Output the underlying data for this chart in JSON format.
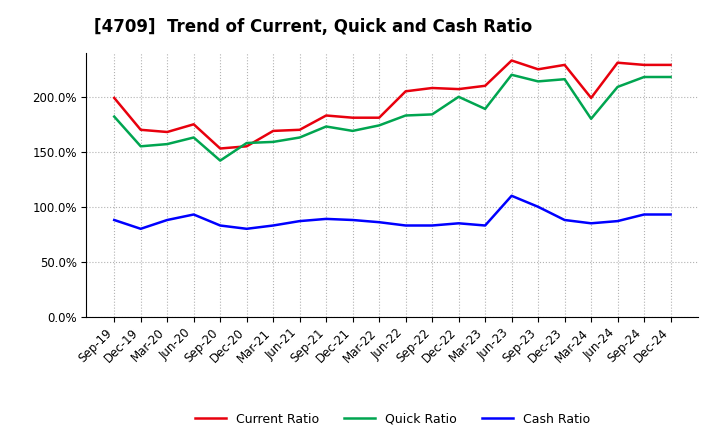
{
  "title": "[4709]  Trend of Current, Quick and Cash Ratio",
  "labels": [
    "Sep-19",
    "Dec-19",
    "Mar-20",
    "Jun-20",
    "Sep-20",
    "Dec-20",
    "Mar-21",
    "Jun-21",
    "Sep-21",
    "Dec-21",
    "Mar-22",
    "Jun-22",
    "Sep-22",
    "Dec-22",
    "Mar-23",
    "Jun-23",
    "Sep-23",
    "Dec-23",
    "Mar-24",
    "Jun-24",
    "Sep-24",
    "Dec-24"
  ],
  "current_ratio": [
    199,
    170,
    168,
    175,
    153,
    155,
    169,
    170,
    183,
    181,
    181,
    205,
    208,
    207,
    210,
    233,
    225,
    229,
    199,
    231,
    229,
    229
  ],
  "quick_ratio": [
    182,
    155,
    157,
    163,
    142,
    158,
    159,
    163,
    173,
    169,
    174,
    183,
    184,
    200,
    189,
    220,
    214,
    216,
    180,
    209,
    218,
    218
  ],
  "cash_ratio": [
    88,
    80,
    88,
    93,
    83,
    80,
    83,
    87,
    89,
    88,
    86,
    83,
    83,
    85,
    83,
    110,
    100,
    88,
    85,
    87,
    93,
    93
  ],
  "ylim": [
    0,
    240
  ],
  "yticks": [
    0,
    50,
    100,
    150,
    200
  ],
  "ytick_labels": [
    "0.0%",
    "50.0%",
    "100.0%",
    "150.0%",
    "200.0%"
  ],
  "current_color": "#e8000d",
  "quick_color": "#00a550",
  "cash_color": "#0000ff",
  "bg_color": "#ffffff",
  "plot_bg_color": "#ffffff",
  "grid_color": "#aaaaaa",
  "line_width": 1.8,
  "legend_labels": [
    "Current Ratio",
    "Quick Ratio",
    "Cash Ratio"
  ],
  "title_fontsize": 12,
  "tick_fontsize": 8.5
}
